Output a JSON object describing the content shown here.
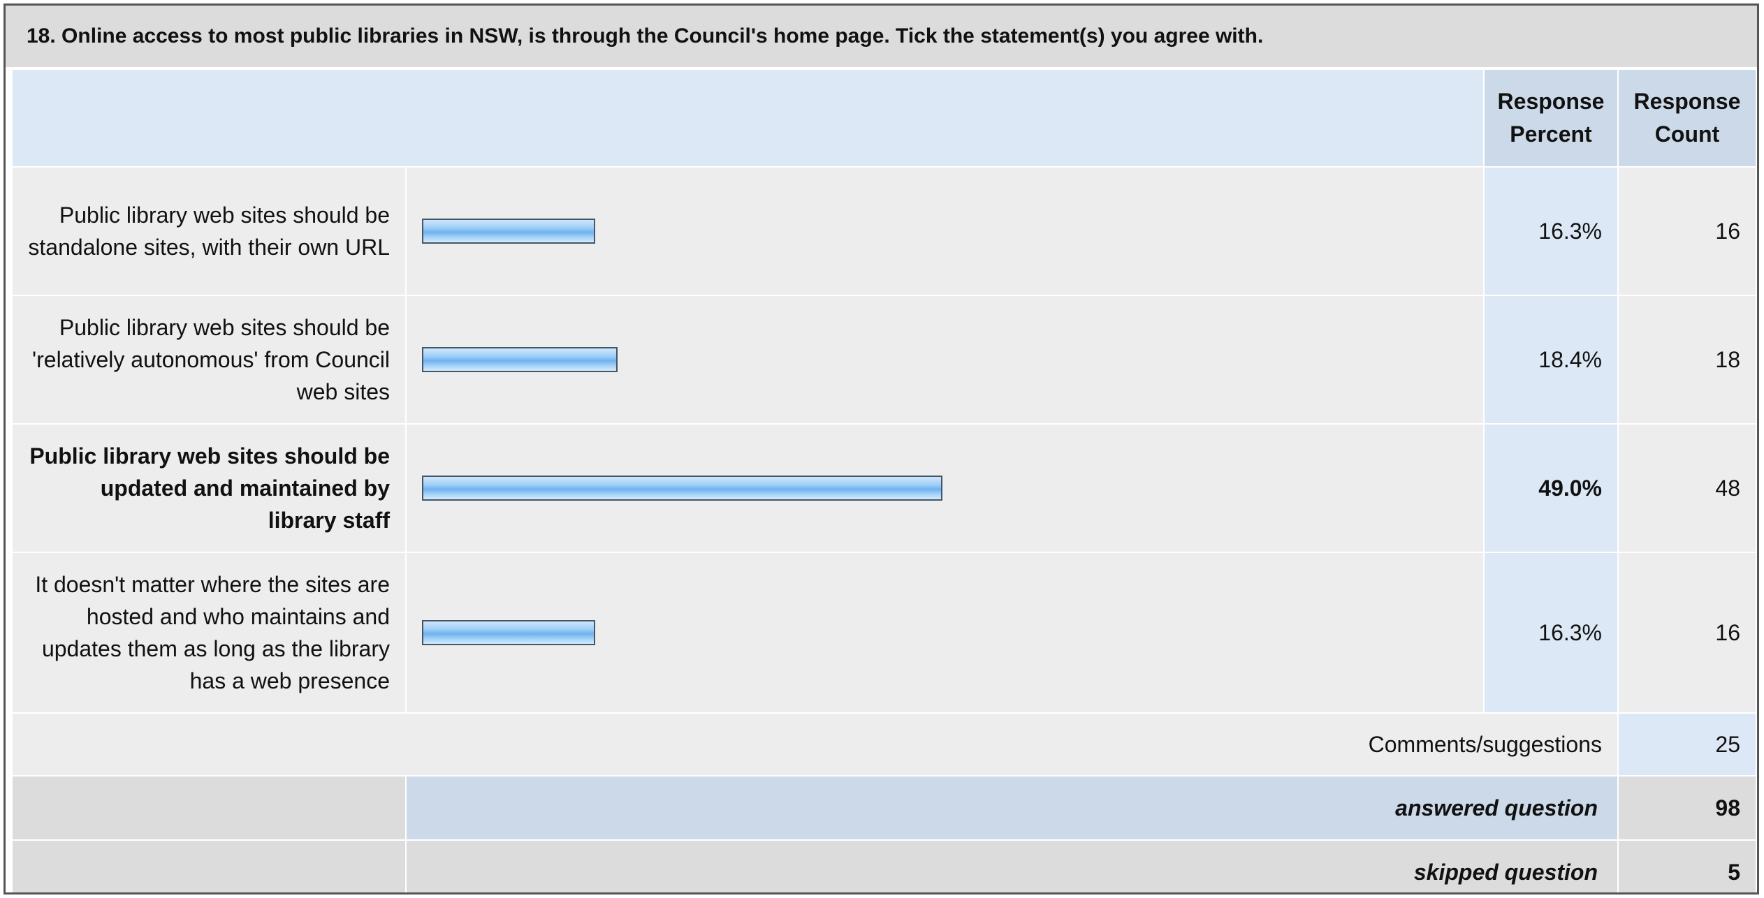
{
  "question": "18. Online access to most public libraries in NSW, is through the Council's home page. Tick the statement(s) you agree with.",
  "headers": {
    "percent_line1": "Response",
    "percent_line2": "Percent",
    "count_line1": "Response",
    "count_line2": "Count"
  },
  "chart_data": {
    "type": "bar",
    "orientation": "horizontal",
    "title": "18. Online access to most public libraries in NSW, is through the Council's home page. Tick the statement(s) you agree with.",
    "categories": [
      "Public library web sites should be standalone sites, with their own URL",
      "Public library web sites should be 'relatively autonomous' from Council web sites",
      "Public library web sites should be updated and maintained by library staff",
      "It doesn't matter where the sites are hosted and who maintains and updates them as long as the library has a web presence"
    ],
    "series": [
      {
        "values": [
          16.3,
          18.4,
          49.0,
          16.3
        ]
      }
    ],
    "xlim": [
      0,
      100
    ],
    "bar_color": "#6fb2f0"
  },
  "rows": [
    {
      "label": "Public library web sites should be standalone sites, with their own URL",
      "percent": 16.3,
      "percent_text": "16.3%",
      "count": "16",
      "bold": false
    },
    {
      "label": "Public library web sites should be 'relatively autonomous' from Council web sites",
      "percent": 18.4,
      "percent_text": "18.4%",
      "count": "18",
      "bold": false
    },
    {
      "label": "Public library web sites should be updated and maintained by library staff",
      "percent": 49.0,
      "percent_text": "49.0%",
      "count": "48",
      "bold": true
    },
    {
      "label": "It doesn't matter where the sites are hosted and who maintains and updates them as long as the library has a web presence",
      "percent": 16.3,
      "percent_text": "16.3%",
      "count": "16",
      "bold": false
    }
  ],
  "comments": {
    "label": "Comments/suggestions",
    "count": "25"
  },
  "answered": {
    "label": "answered question",
    "count": "98"
  },
  "skipped": {
    "label": "skipped question",
    "count": "5"
  }
}
